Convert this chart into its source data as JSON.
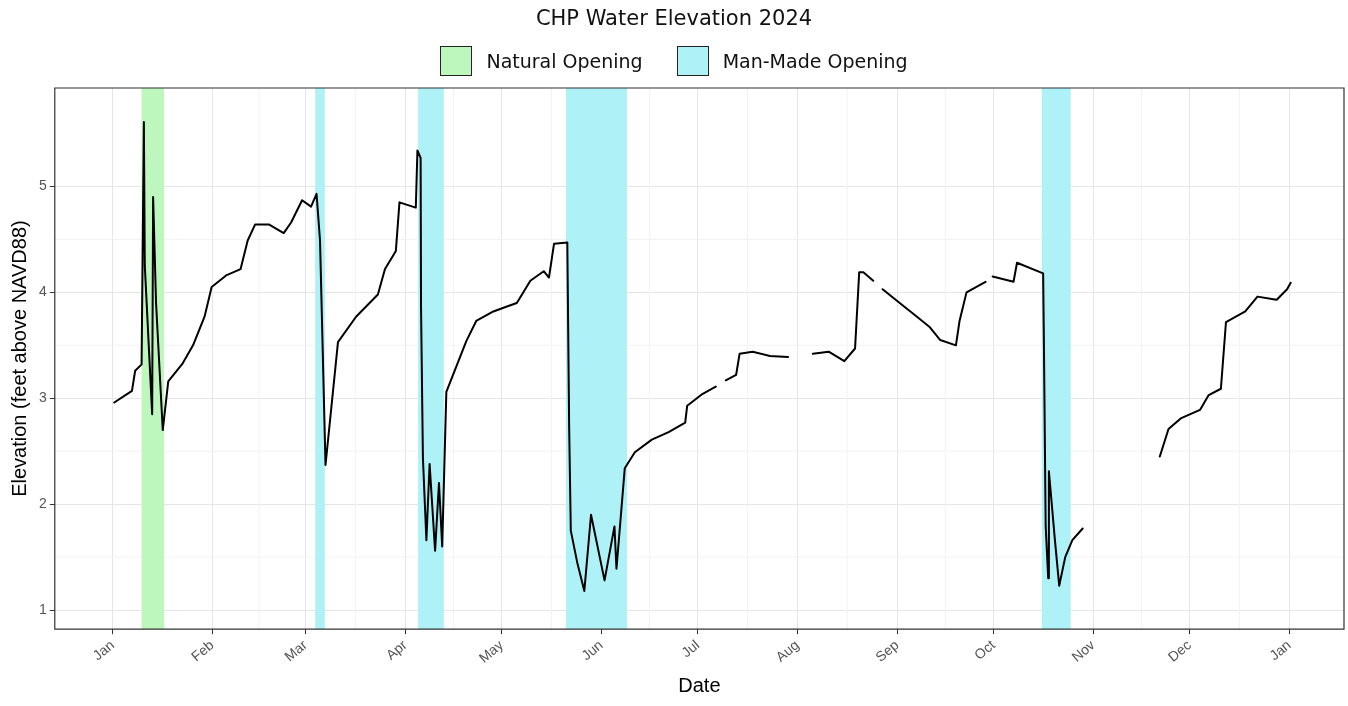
{
  "chart_data": {
    "type": "line",
    "title": "CHP Water Elevation 2024",
    "xlabel": "Date",
    "ylabel": "Elevation (feet above NAVD88)",
    "xlim": [
      "2023-12-14",
      "2025-01-18"
    ],
    "ylim": [
      0.82,
      5.93
    ],
    "xticks": [
      {
        "value": "2024-01-01",
        "label": "Jan"
      },
      {
        "value": "2024-02-01",
        "label": "Feb"
      },
      {
        "value": "2024-03-01",
        "label": "Mar"
      },
      {
        "value": "2024-04-01",
        "label": "Apr"
      },
      {
        "value": "2024-05-01",
        "label": "May"
      },
      {
        "value": "2024-06-01",
        "label": "Jun"
      },
      {
        "value": "2024-07-01",
        "label": "Jul"
      },
      {
        "value": "2024-08-01",
        "label": "Aug"
      },
      {
        "value": "2024-09-01",
        "label": "Sep"
      },
      {
        "value": "2024-10-01",
        "label": "Oct"
      },
      {
        "value": "2024-11-01",
        "label": "Nov"
      },
      {
        "value": "2024-12-01",
        "label": "Dec"
      },
      {
        "value": "2025-01-01",
        "label": "Jan"
      }
    ],
    "yticks": [
      1,
      2,
      3,
      4,
      5
    ],
    "grid": true,
    "legend": "top",
    "marker": "none",
    "line_style": "solid",
    "bands": [
      {
        "axis": "x",
        "from": "2024-01-10",
        "to": "2024-01-17",
        "label": "Natural Opening",
        "color": "#bdf7bd"
      },
      {
        "axis": "x",
        "from": "2024-03-04",
        "to": "2024-03-07",
        "label": "Man-Made Opening",
        "color": "#aef2f8"
      },
      {
        "axis": "x",
        "from": "2024-04-05",
        "to": "2024-04-13",
        "color": "#aef2f8"
      },
      {
        "axis": "x",
        "from": "2024-05-21",
        "to": "2024-06-09",
        "color": "#aef2f8"
      },
      {
        "axis": "x",
        "from": "2024-10-16",
        "to": "2024-10-25",
        "color": "#aef2f8"
      }
    ],
    "series": [
      {
        "color": "#000000",
        "x": [
          "2024-01-01T12:00",
          "2024-01-07",
          "2024-01-08",
          "2024-01-10",
          "2024-01-10T17:00",
          "2024-01-11",
          "2024-01-13T07:00",
          "2024-01-13T14:00",
          "2024-01-14T12:00",
          "2024-01-16T14:00",
          "2024-01-18T07:00",
          "2024-01-22T19:00",
          "2024-01-26",
          "2024-01-29T14:00",
          "2024-01-31T19:00",
          "2024-02-05T07:00",
          "2024-02-09T19:00",
          "2024-02-12",
          "2024-02-14T07:00",
          "2024-02-18T17:00",
          "2024-02-23T05:00",
          "2024-02-25T12:00",
          "2024-02-28T22:00",
          "2024-03-02T17:00",
          "2024-03-04T10:00",
          "2024-03-05T12:00",
          "2024-03-07T05:00",
          "2024-03-11T02:00",
          "2024-03-16T17:00",
          "2024-03-23T12:00",
          "2024-03-25T17:00",
          "2024-03-29T02:00",
          "2024-03-30T05:00",
          "2024-04-04T07:00",
          "2024-04-04T19:00",
          "2024-04-05T19:00",
          "2024-04-05T22:00",
          "2024-04-06T12:00",
          "2024-04-07T14:00",
          "2024-04-08T14:00",
          "2024-04-10T07:00",
          "2024-04-11T12:00",
          "2024-04-12T12:00",
          "2024-04-13T19:00",
          "2024-04-20",
          "2024-04-23T02:00",
          "2024-04-28T10:00",
          "2024-05-05T17:00",
          "2024-05-09T22:00",
          "2024-05-14T02:00",
          "2024-05-15T17:00",
          "2024-05-17T07:00",
          "2024-05-21T10:00",
          "2024-05-22",
          "2024-05-22T12:00",
          "2024-05-24T12:00",
          "2024-05-26T17:00",
          "2024-05-28T19:00",
          "2024-06-02",
          "2024-06-05T02:00",
          "2024-06-05T17:00",
          "2024-06-08T07:00",
          "2024-06-11T10:00",
          "2024-06-16T17:00",
          "2024-06-21T22:00",
          "2024-06-27T02:00",
          "2024-06-27T17:00",
          "2024-07-02T10:00",
          "2024-07-06T14:00",
          "2024-07-08",
          "2024-07-09T17:00",
          "2024-07-12T22:00",
          "2024-07-14",
          "2024-07-18T02:00",
          "2024-07-23T10:00",
          "2024-07-29T02:00",
          "2024-08-03",
          "2024-08-05T19:00",
          "2024-08-10T17:00",
          "2024-08-15T14:00",
          "2024-08-18T22:00",
          "2024-08-20T05:00",
          "2024-08-21T12:00",
          "2024-08-24T14:00",
          "2024-08-26",
          "2024-08-27T12:00",
          "2024-09-01T10:00",
          "2024-09-06T19:00",
          "2024-09-11T05:00",
          "2024-09-14T10:00",
          "2024-09-19T07:00",
          "2024-09-20T10:00",
          "2024-09-22T14:00",
          "2024-09-28T12:00",
          "2024-09-29T12:00",
          "2024-09-30T17:00",
          "2024-10-07T05:00",
          "2024-10-08T07:00",
          "2024-10-16T10:00",
          "2024-10-16T17:00",
          "2024-10-17T05:00",
          "2024-10-18",
          "2024-10-18T05:00",
          "2024-10-20T02:00",
          "2024-10-21T10:00",
          "2024-10-23T07:00",
          "2024-10-25T12:00",
          "2024-10-28T17:00",
          "2024-11-10",
          "2024-11-21T17:00",
          "2024-11-24T10:00",
          "2024-11-28T05:00",
          "2024-12-04T05:00",
          "2024-12-06T22:00",
          "2024-12-10T17:00",
          "2024-12-12T07:00",
          "2024-12-18T07:00",
          "2024-12-22T02:00",
          "2024-12-28T02:00",
          "2024-12-31T07:00",
          "2025-01-01T10:00"
        ],
        "values": [
          2.96,
          3.07,
          3.26,
          3.32,
          5.61,
          4.25,
          2.85,
          4.9,
          3.9,
          2.7,
          3.16,
          3.33,
          3.5,
          3.77,
          4.05,
          4.16,
          4.22,
          4.49,
          4.64,
          4.64,
          4.56,
          4.66,
          4.87,
          4.81,
          4.93,
          4.49,
          2.37,
          3.53,
          3.77,
          3.98,
          4.22,
          4.39,
          4.85,
          4.8,
          5.34,
          5.27,
          3.87,
          2.44,
          1.66,
          2.38,
          1.56,
          2.2,
          1.6,
          3.06,
          3.54,
          3.73,
          3.82,
          3.9,
          4.11,
          4.2,
          4.14,
          4.46,
          4.47,
          2.71,
          1.75,
          1.45,
          1.18,
          1.9,
          1.28,
          1.79,
          1.39,
          2.34,
          2.49,
          2.61,
          2.68,
          2.77,
          2.93,
          3.04,
          3.11,
          null,
          3.17,
          3.22,
          3.42,
          3.44,
          3.4,
          3.39,
          null,
          3.42,
          3.44,
          3.35,
          3.47,
          4.19,
          4.19,
          4.11,
          null,
          4.03,
          3.91,
          3.78,
          3.67,
          3.55,
          3.5,
          3.73,
          4.0,
          4.1,
          null,
          4.15,
          4.1,
          4.28,
          4.18,
          3.37,
          1.79,
          1.3,
          2.31,
          1.66,
          1.23,
          1.5,
          1.66,
          1.77,
          null,
          2.45,
          2.71,
          2.81,
          2.89,
          3.03,
          3.09,
          3.72,
          3.82,
          3.96,
          3.93,
          4.03,
          4.09
        ]
      }
    ]
  }
}
